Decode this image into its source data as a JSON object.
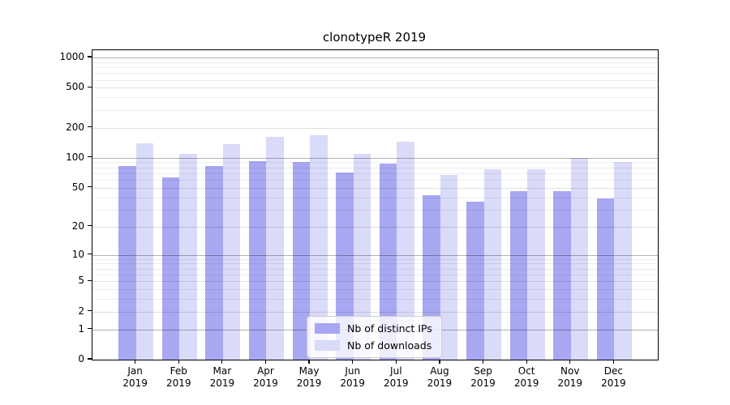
{
  "title": "clonotypeR 2019",
  "legend": {
    "items": [
      {
        "label": "Nb of distinct IPs",
        "color": "#a7a7f2"
      },
      {
        "label": "Nb of downloads",
        "color": "#dadaf9"
      }
    ]
  },
  "chart_data": {
    "type": "bar",
    "title": "clonotypeR 2019",
    "categories": [
      "Jan 2019",
      "Feb 2019",
      "Mar 2019",
      "Apr 2019",
      "May 2019",
      "Jun 2019",
      "Jul 2019",
      "Aug 2019",
      "Sep 2019",
      "Oct 2019",
      "Nov 2019",
      "Dec 2019"
    ],
    "series": [
      {
        "name": "Nb of distinct IPs",
        "key": "distinct-ips",
        "color": "#a7a7f2",
        "values": [
          82,
          63,
          82,
          93,
          90,
          71,
          88,
          42,
          36,
          46,
          46,
          39
        ]
      },
      {
        "name": "Nb of downloads",
        "key": "downloads",
        "color": "#dadaf9",
        "values": [
          139,
          110,
          136,
          161,
          168,
          110,
          144,
          67,
          76,
          77,
          100,
          91
        ]
      }
    ],
    "xlabel": "",
    "ylabel": "",
    "yscale": "log1p",
    "yticks": [
      0,
      1,
      2,
      5,
      10,
      20,
      50,
      100,
      200,
      500,
      1000
    ],
    "minor_yticks": [
      3,
      4,
      6,
      7,
      8,
      9,
      30,
      40,
      60,
      70,
      80,
      90,
      300,
      400,
      600,
      700,
      800,
      900
    ],
    "ylim": [
      0,
      1180
    ],
    "grid": true,
    "legend_position": "lower-center"
  }
}
